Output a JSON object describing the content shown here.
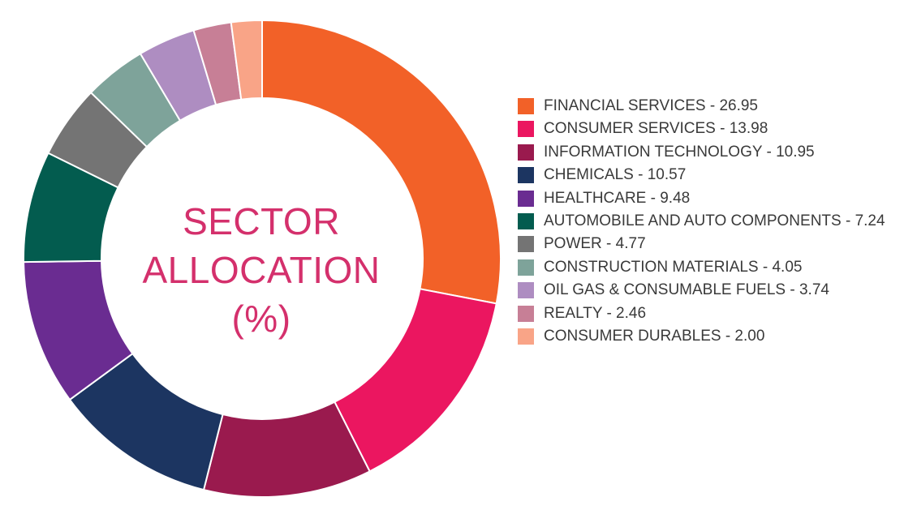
{
  "chart_data": {
    "type": "pie",
    "donut": true,
    "title_lines": [
      "SECTOR",
      "ALLOCATION",
      "(%)"
    ],
    "title_color": "#d4306c",
    "legend_position": "right",
    "slices": [
      {
        "label": "FINANCIAL SERVICES - 26.95",
        "name": "FINANCIAL SERVICES",
        "value": 26.95,
        "color": "#f26128"
      },
      {
        "label": "CONSUMER SERVICES - 13.98",
        "name": "CONSUMER SERVICES",
        "value": 13.98,
        "color": "#eb1660"
      },
      {
        "label": "INFORMATION TECHNOLOGY - 10.95",
        "name": "INFORMATION TECHNOLOGY",
        "value": 10.95,
        "color": "#9a1a4e"
      },
      {
        "label": "CHEMICALS - 10.57",
        "name": "CHEMICALS",
        "value": 10.57,
        "color": "#1c3561"
      },
      {
        "label": "HEALTHCARE - 9.48",
        "name": "HEALTHCARE",
        "value": 9.48,
        "color": "#6a2c91"
      },
      {
        "label": "AUTOMOBILE AND AUTO COMPONENTS - 7.24",
        "name": "AUTOMOBILE AND AUTO COMPONENTS",
        "value": 7.24,
        "color": "#035c4f"
      },
      {
        "label": "POWER - 4.77",
        "name": "POWER",
        "value": 4.77,
        "color": "#747474"
      },
      {
        "label": "CONSTRUCTION MATERIALS - 4.05",
        "name": "CONSTRUCTION MATERIALS",
        "value": 4.05,
        "color": "#7ea39a"
      },
      {
        "label": "OIL GAS & CONSUMABLE FUELS - 3.74",
        "name": "OIL GAS & CONSUMABLE FUELS",
        "value": 3.74,
        "color": "#ae8dc1"
      },
      {
        "label": "REALTY - 2.46",
        "name": "REALTY",
        "value": 2.46,
        "color": "#c77f96"
      },
      {
        "label": "CONSUMER DURABLES - 2.00",
        "name": "CONSUMER DURABLES",
        "value": 2.0,
        "color": "#f9a487"
      }
    ]
  }
}
